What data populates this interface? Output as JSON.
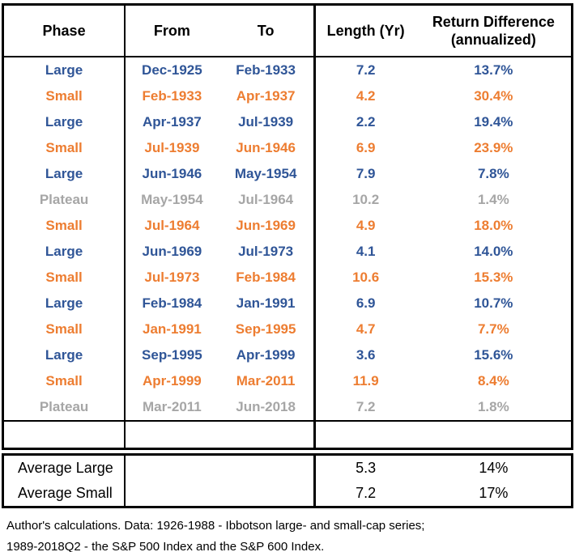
{
  "colors": {
    "large": "#2F5597",
    "small": "#ED7D31",
    "plateau": "#A6A6A6",
    "header_text": "#000000",
    "border": "#000000",
    "background": "#FFFFFF"
  },
  "table": {
    "headers": {
      "phase": "Phase",
      "from": "From",
      "to": "To",
      "length": "Length (Yr)",
      "return_line1": "Return Difference",
      "return_line2": "(annualized)"
    },
    "rows": [
      {
        "phase": "Large",
        "from": "Dec-1925",
        "to": "Feb-1933",
        "length": "7.2",
        "return": "13.7%"
      },
      {
        "phase": "Small",
        "from": "Feb-1933",
        "to": "Apr-1937",
        "length": "4.2",
        "return": "30.4%"
      },
      {
        "phase": "Large",
        "from": "Apr-1937",
        "to": "Jul-1939",
        "length": "2.2",
        "return": "19.4%"
      },
      {
        "phase": "Small",
        "from": "Jul-1939",
        "to": "Jun-1946",
        "length": "6.9",
        "return": "23.9%"
      },
      {
        "phase": "Large",
        "from": "Jun-1946",
        "to": "May-1954",
        "length": "7.9",
        "return": "7.8%"
      },
      {
        "phase": "Plateau",
        "from": "May-1954",
        "to": "Jul-1964",
        "length": "10.2",
        "return": "1.4%"
      },
      {
        "phase": "Small",
        "from": "Jul-1964",
        "to": "Jun-1969",
        "length": "4.9",
        "return": "18.0%"
      },
      {
        "phase": "Large",
        "from": "Jun-1969",
        "to": "Jul-1973",
        "length": "4.1",
        "return": "14.0%"
      },
      {
        "phase": "Small",
        "from": "Jul-1973",
        "to": "Feb-1984",
        "length": "10.6",
        "return": "15.3%"
      },
      {
        "phase": "Large",
        "from": "Feb-1984",
        "to": "Jan-1991",
        "length": "6.9",
        "return": "10.7%"
      },
      {
        "phase": "Small",
        "from": "Jan-1991",
        "to": "Sep-1995",
        "length": "4.7",
        "return": "7.7%"
      },
      {
        "phase": "Large",
        "from": "Sep-1995",
        "to": "Apr-1999",
        "length": "3.6",
        "return": "15.6%"
      },
      {
        "phase": "Small",
        "from": "Apr-1999",
        "to": "Mar-2011",
        "length": "11.9",
        "return": "8.4%"
      },
      {
        "phase": "Plateau",
        "from": "Mar-2011",
        "to": "Jun-2018",
        "length": "7.2",
        "return": "1.8%"
      }
    ],
    "averages": [
      {
        "label": "Average Large",
        "length": "5.3",
        "return": "14%"
      },
      {
        "label": "Average Small",
        "length": "7.2",
        "return": "17%"
      }
    ]
  },
  "footnote": {
    "line1": "Author's calculations. Data: 1926-1988 - Ibbotson large- and small-cap series;",
    "line2": "1989-2018Q2 - the S&P 500 Index and the S&P 600 Index."
  },
  "chart_data": {
    "type": "table",
    "title": "Return Difference by Market Phase",
    "columns": [
      "Phase",
      "From",
      "To",
      "Length (Yr)",
      "Return Difference (annualized)"
    ],
    "rows": [
      [
        "Large",
        "Dec-1925",
        "Feb-1933",
        7.2,
        "13.7%"
      ],
      [
        "Small",
        "Feb-1933",
        "Apr-1937",
        4.2,
        "30.4%"
      ],
      [
        "Large",
        "Apr-1937",
        "Jul-1939",
        2.2,
        "19.4%"
      ],
      [
        "Small",
        "Jul-1939",
        "Jun-1946",
        6.9,
        "23.9%"
      ],
      [
        "Large",
        "Jun-1946",
        "May-1954",
        7.9,
        "7.8%"
      ],
      [
        "Plateau",
        "May-1954",
        "Jul-1964",
        10.2,
        "1.4%"
      ],
      [
        "Small",
        "Jul-1964",
        "Jun-1969",
        4.9,
        "18.0%"
      ],
      [
        "Large",
        "Jun-1969",
        "Jul-1973",
        4.1,
        "14.0%"
      ],
      [
        "Small",
        "Jul-1973",
        "Feb-1984",
        10.6,
        "15.3%"
      ],
      [
        "Large",
        "Feb-1984",
        "Jan-1991",
        6.9,
        "10.7%"
      ],
      [
        "Small",
        "Jan-1991",
        "Sep-1995",
        4.7,
        "7.7%"
      ],
      [
        "Large",
        "Sep-1995",
        "Apr-1999",
        3.6,
        "15.6%"
      ],
      [
        "Small",
        "Apr-1999",
        "Mar-2011",
        11.9,
        "8.4%"
      ],
      [
        "Plateau",
        "Mar-2011",
        "Jun-2018",
        7.2,
        "1.8%"
      ]
    ],
    "summary_rows": [
      [
        "Average Large",
        "",
        "",
        5.3,
        "14%"
      ],
      [
        "Average Small",
        "",
        "",
        7.2,
        "17%"
      ]
    ],
    "notes": "Author's calculations. Data: 1926-1988 - Ibbotson large- and small-cap series; 1989-2018Q2 - the S&P 500 Index and the S&P 600 Index."
  }
}
